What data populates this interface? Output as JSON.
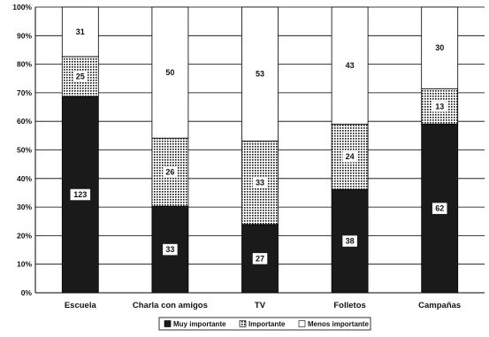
{
  "chart_data": {
    "type": "bar",
    "stacked": "percent",
    "categories": [
      "Escuela",
      "Charla con amigos",
      "TV",
      "Folletos",
      "Campañas"
    ],
    "series": [
      {
        "name": "Muy importante",
        "values": [
          123,
          33,
          27,
          38,
          62
        ],
        "pattern": "solid"
      },
      {
        "name": "Importante",
        "values": [
          25,
          26,
          33,
          24,
          13
        ],
        "pattern": "dotted"
      },
      {
        "name": "Menos importante",
        "values": [
          31,
          50,
          53,
          43,
          30
        ],
        "pattern": "empty"
      }
    ],
    "y_ticks": [
      "0%",
      "10%",
      "20%",
      "30%",
      "40%",
      "50%",
      "60%",
      "70%",
      "80%",
      "90%",
      "100%"
    ],
    "ylim": [
      0,
      100
    ],
    "grid": true,
    "legend_position": "bottom",
    "colors": {
      "solid": "#1a1a1a",
      "dotted_bg": "#ffffff",
      "dotted_fg": "#111111",
      "empty": "#ffffff",
      "grid": "#000000"
    }
  }
}
